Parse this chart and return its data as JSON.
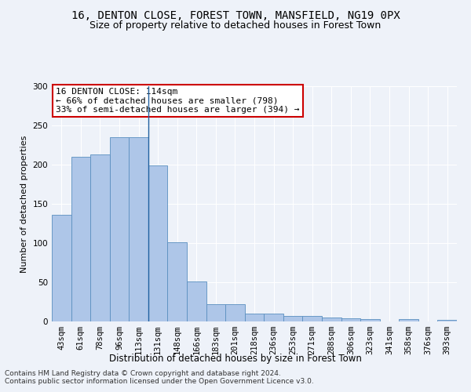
{
  "title1": "16, DENTON CLOSE, FOREST TOWN, MANSFIELD, NG19 0PX",
  "title2": "Size of property relative to detached houses in Forest Town",
  "xlabel": "Distribution of detached houses by size in Forest Town",
  "ylabel": "Number of detached properties",
  "categories": [
    "43sqm",
    "61sqm",
    "78sqm",
    "96sqm",
    "113sqm",
    "131sqm",
    "148sqm",
    "166sqm",
    "183sqm",
    "201sqm",
    "218sqm",
    "236sqm",
    "253sqm",
    "271sqm",
    "288sqm",
    "306sqm",
    "323sqm",
    "341sqm",
    "358sqm",
    "376sqm",
    "393sqm"
  ],
  "values": [
    136,
    210,
    213,
    235,
    235,
    199,
    101,
    51,
    22,
    22,
    10,
    10,
    7,
    7,
    5,
    4,
    3,
    0,
    3,
    0,
    2
  ],
  "bar_color": "#aec6e8",
  "bar_edge_color": "#5a8fc0",
  "highlight_index": 4,
  "highlight_line_color": "#2060a0",
  "annotation_text": "16 DENTON CLOSE: 114sqm\n← 66% of detached houses are smaller (798)\n33% of semi-detached houses are larger (394) →",
  "annotation_box_color": "#ffffff",
  "annotation_box_edge_color": "#cc0000",
  "ylim": [
    0,
    300
  ],
  "yticks": [
    0,
    50,
    100,
    150,
    200,
    250,
    300
  ],
  "footer1": "Contains HM Land Registry data © Crown copyright and database right 2024.",
  "footer2": "Contains public sector information licensed under the Open Government Licence v3.0.",
  "background_color": "#eef2f9",
  "grid_color": "#ffffff",
  "title1_fontsize": 10,
  "title2_fontsize": 9,
  "xlabel_fontsize": 8.5,
  "ylabel_fontsize": 8,
  "tick_fontsize": 7.5,
  "footer_fontsize": 6.5,
  "annotation_fontsize": 8
}
